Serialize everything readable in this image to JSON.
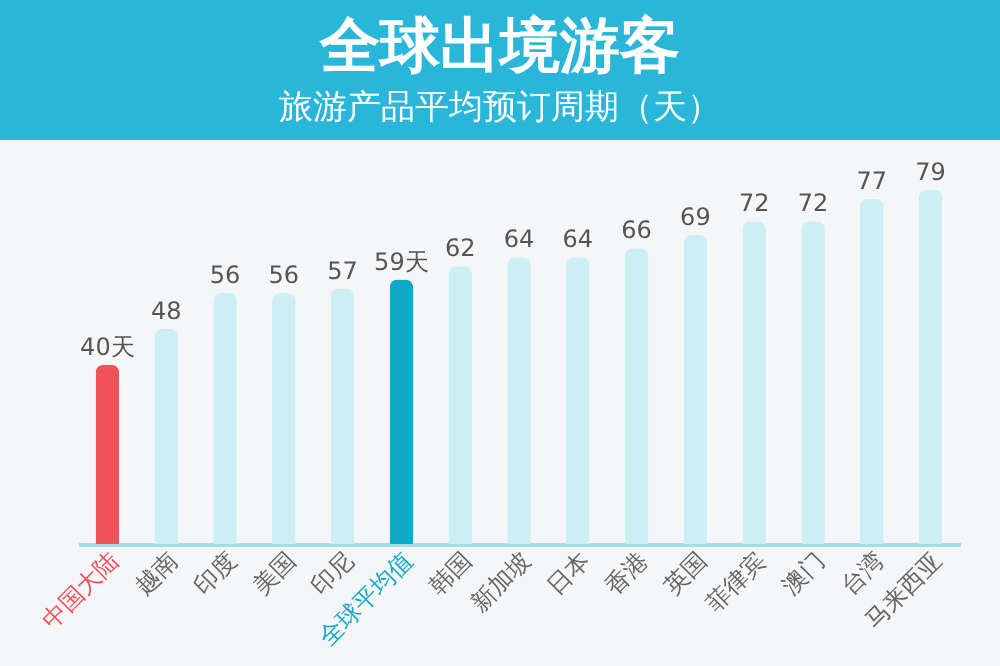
{
  "chart_data": {
    "type": "bar",
    "title": "全球出境游客",
    "subtitle": "旅游产品平均预订周期（天）",
    "categories": [
      "中国大陆",
      "越南",
      "印度",
      "美国",
      "印尼",
      "全球平均值",
      "韩国",
      "新加坡",
      "日本",
      "香港",
      "英国",
      "菲律宾",
      "澳门",
      "台湾",
      "马来西亚"
    ],
    "values": [
      40,
      48,
      56,
      56,
      57,
      59,
      62,
      64,
      64,
      66,
      69,
      72,
      72,
      77,
      79
    ],
    "colors": [
      "#f0525a",
      "#cdeef3",
      "#cdeef3",
      "#cdeef3",
      "#cdeef3",
      "#12a9c8",
      "#cdeef3",
      "#cdeef3",
      "#cdeef3",
      "#cdeef3",
      "#cdeef3",
      "#cdeef3",
      "#cdeef3",
      "#cdeef3",
      "#cdeef3"
    ],
    "value_labels": [
      "40天",
      "48",
      "56",
      "56",
      "57",
      "59天",
      "62",
      "64",
      "64",
      "66",
      "69",
      "72",
      "72",
      "77",
      "79"
    ]
  }
}
